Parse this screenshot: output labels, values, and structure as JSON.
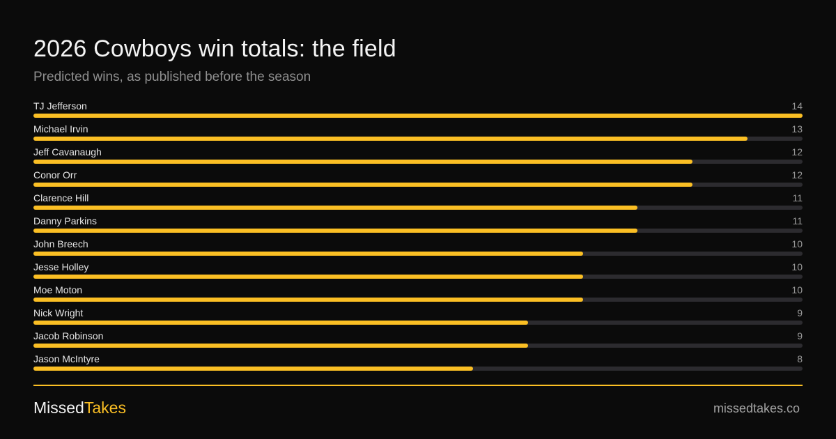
{
  "header": {
    "title": "2026 Cowboys win totals: the field",
    "subtitle": "Predicted wins, as published before the season"
  },
  "footer": {
    "brand_first": "Missed",
    "brand_second": "Takes",
    "site": "missedtakes.co"
  },
  "colors": {
    "accent": "#fbbf24",
    "track": "#2c2b2f",
    "background": "#0b0b0b"
  },
  "chart_data": {
    "type": "bar",
    "orientation": "horizontal",
    "title": "2026 Cowboys win totals: the field",
    "subtitle": "Predicted wins, as published before the season",
    "categories": [
      "TJ Jefferson",
      "Michael Irvin",
      "Jeff Cavanaugh",
      "Conor Orr",
      "Clarence Hill",
      "Danny Parkins",
      "John Breech",
      "Jesse Holley",
      "Moe Moton",
      "Nick Wright",
      "Jacob Robinson",
      "Jason McIntyre"
    ],
    "values": [
      14,
      13,
      12,
      12,
      11,
      11,
      10,
      10,
      10,
      9,
      9,
      8
    ],
    "xlim": [
      0,
      14
    ],
    "grid": false,
    "legend": "none"
  }
}
